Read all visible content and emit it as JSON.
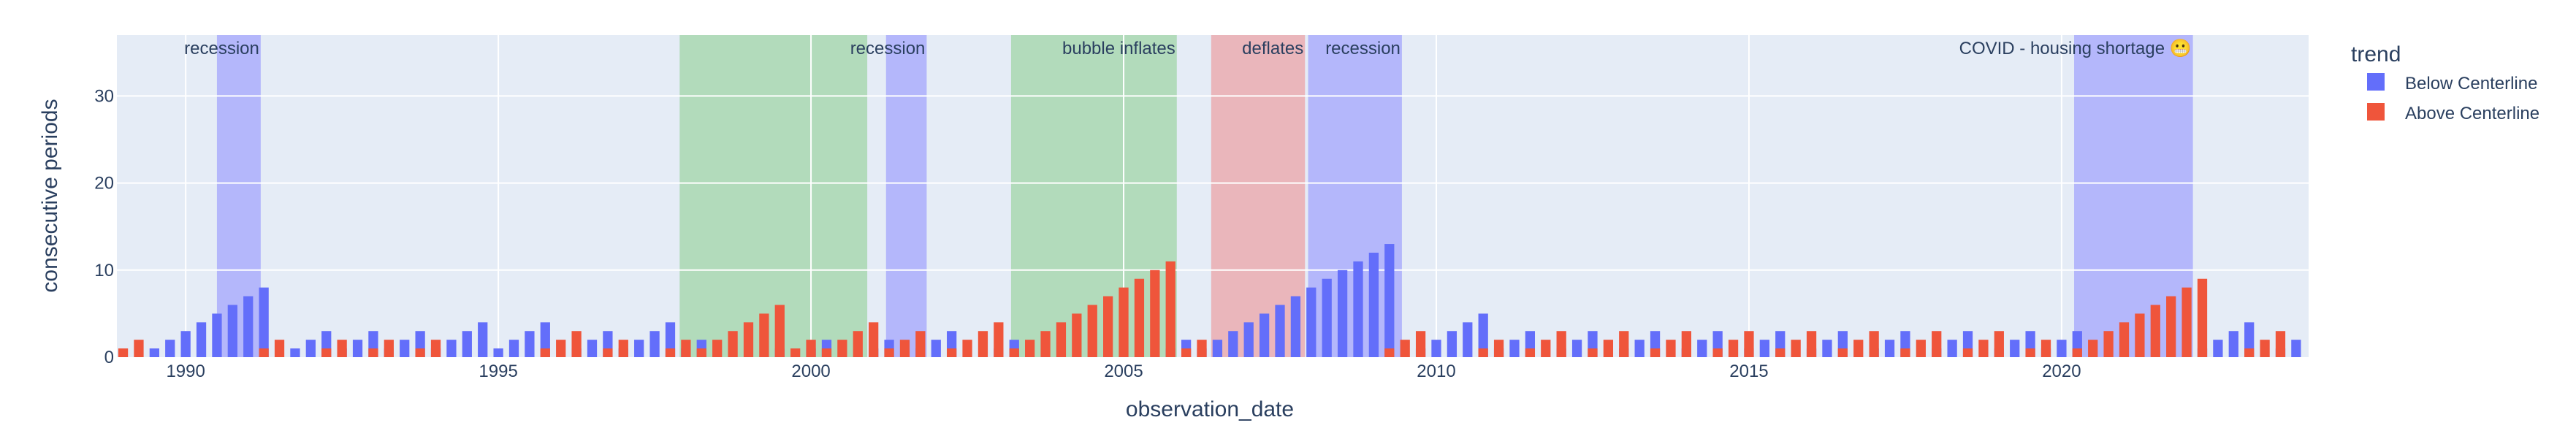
{
  "chart_data": {
    "type": "bar",
    "title": "",
    "xlabel": "observation_date",
    "ylabel": "consecutive periods",
    "xlim": [
      1988.9,
      2023.95
    ],
    "ylim": [
      0,
      37
    ],
    "x_ticks": [
      1990,
      1995,
      2000,
      2005,
      2010,
      2015,
      2020
    ],
    "y_ticks": [
      0,
      10,
      20,
      30
    ],
    "grid": true,
    "legend": {
      "title": "trend",
      "placement": "right"
    },
    "colors": {
      "below": "#636efa",
      "above": "#ef553b",
      "bg": "#e5ecf6",
      "recession": "#8c8cff",
      "inflate": "#7fc97f",
      "deflate": "#f08080"
    },
    "series": [
      {
        "name": "Below Centerline",
        "runs": [
          [
            1989.5,
            1991.25
          ],
          [
            1991.75,
            1992.25
          ],
          [
            1992.5,
            1993.0
          ],
          [
            1993.25,
            1993.75
          ],
          [
            1994.0,
            1994.75
          ],
          [
            1995.0,
            1995.75
          ],
          [
            1996.25,
            1996.75
          ],
          [
            1997.0,
            1997.75
          ],
          [
            1998.0,
            1998.25
          ],
          [
            1999.5,
            1999.5
          ],
          [
            2000.0,
            2000.25
          ],
          [
            2001.0,
            2001.25
          ],
          [
            2001.75,
            2002.25
          ],
          [
            2003.0,
            2003.25
          ],
          [
            2005.75,
            2006.0
          ],
          [
            2006.25,
            2009.25
          ],
          [
            2009.75,
            2010.75
          ],
          [
            2011.0,
            2011.5
          ],
          [
            2012.0,
            2012.5
          ],
          [
            2013.0,
            2013.5
          ],
          [
            2014.0,
            2014.5
          ],
          [
            2015.0,
            2015.5
          ],
          [
            2016.0,
            2016.5
          ],
          [
            2017.0,
            2017.5
          ],
          [
            2018.0,
            2018.5
          ],
          [
            2019.0,
            2019.5
          ],
          [
            2019.75,
            2020.25
          ],
          [
            2022.25,
            2023.0
          ],
          [
            2023.5,
            2023.95
          ]
        ]
      },
      {
        "name": "Above Centerline",
        "runs": [
          [
            1989.0,
            1989.25
          ],
          [
            1991.25,
            1991.5
          ],
          [
            1992.25,
            1992.5
          ],
          [
            1993.0,
            1993.25
          ],
          [
            1993.75,
            1994.0
          ],
          [
            1995.75,
            1996.25
          ],
          [
            1996.75,
            1997.0
          ],
          [
            1997.75,
            1998.0
          ],
          [
            1998.25,
            1999.5
          ],
          [
            1999.75,
            2000.0
          ],
          [
            2000.25,
            2001.0
          ],
          [
            2001.25,
            2001.75
          ],
          [
            2002.25,
            2003.0
          ],
          [
            2003.25,
            2005.75
          ],
          [
            2006.0,
            2006.25
          ],
          [
            2009.25,
            2009.75
          ],
          [
            2010.75,
            2011.0
          ],
          [
            2011.5,
            2012.0
          ],
          [
            2012.5,
            2013.0
          ],
          [
            2013.5,
            2014.0
          ],
          [
            2014.5,
            2015.0
          ],
          [
            2015.5,
            2016.0
          ],
          [
            2016.5,
            2017.0
          ],
          [
            2017.5,
            2018.0
          ],
          [
            2018.5,
            2019.0
          ],
          [
            2019.5,
            2019.75
          ],
          [
            2020.25,
            2022.25
          ],
          [
            2023.0,
            2023.5
          ]
        ]
      }
    ],
    "regions": [
      {
        "label": "recession",
        "x0": 1990.5,
        "x1": 1991.2,
        "kind": "recession",
        "anchor": "end"
      },
      {
        "label": "",
        "x0": 1997.9,
        "x1": 2000.9,
        "kind": "inflate",
        "anchor": "end"
      },
      {
        "label": "recession",
        "x0": 2001.2,
        "x1": 2001.85,
        "kind": "recession",
        "anchor": "end"
      },
      {
        "label": "bubble inflates",
        "x0": 2003.2,
        "x1": 2005.85,
        "kind": "inflate",
        "anchor": "end"
      },
      {
        "label": "deflates",
        "x0": 2006.4,
        "x1": 2007.9,
        "kind": "deflate",
        "anchor": "end"
      },
      {
        "label": "recession",
        "x0": 2007.95,
        "x1": 2009.45,
        "kind": "recession",
        "anchor": "end"
      },
      {
        "label": "COVID - housing shortage 😬",
        "x0": 2020.2,
        "x1": 2022.1,
        "kind": "recession",
        "anchor": "end"
      }
    ]
  }
}
